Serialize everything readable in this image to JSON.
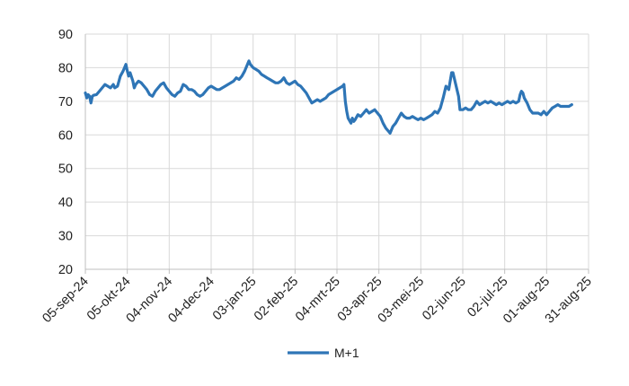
{
  "chart_data": {
    "type": "line",
    "title": "",
    "xlabel": "",
    "ylabel": "",
    "ylim": [
      20,
      90
    ],
    "y_ticks": [
      "20",
      "30",
      "40",
      "50",
      "60",
      "70",
      "80",
      "90"
    ],
    "x_tick_labels": [
      "05-sep-24",
      "05-okt-24",
      "04-nov-24",
      "04-dec-24",
      "03-jan-25",
      "02-feb-25",
      "04-mrt-25",
      "03-apr-25",
      "03-mei-25",
      "02-jun-25",
      "02-jul-25",
      "01-aug-25",
      "31-aug-25"
    ],
    "x_range_days": [
      0,
      360
    ],
    "grid": true,
    "legend_position": "bottom",
    "series": [
      {
        "name": "M+1",
        "color": "#2e75b6",
        "points": [
          [
            0,
            72.5
          ],
          [
            1,
            71
          ],
          [
            2,
            72
          ],
          [
            3,
            71.5
          ],
          [
            4,
            69.5
          ],
          [
            5,
            71.5
          ],
          [
            6,
            71.8
          ],
          [
            8,
            72
          ],
          [
            10,
            73
          ],
          [
            12,
            74
          ],
          [
            14,
            75
          ],
          [
            16,
            74.5
          ],
          [
            18,
            74
          ],
          [
            20,
            75
          ],
          [
            21,
            74
          ],
          [
            23,
            74.5
          ],
          [
            25,
            77.5
          ],
          [
            27,
            79
          ],
          [
            29,
            81
          ],
          [
            30,
            79
          ],
          [
            31,
            77.5
          ],
          [
            32,
            78.5
          ],
          [
            34,
            76
          ],
          [
            35,
            74
          ],
          [
            36,
            75
          ],
          [
            38,
            76
          ],
          [
            40,
            75.5
          ],
          [
            42,
            74.5
          ],
          [
            44,
            73.5
          ],
          [
            46,
            72
          ],
          [
            48,
            71.5
          ],
          [
            50,
            73
          ],
          [
            52,
            74
          ],
          [
            54,
            75
          ],
          [
            56,
            75.5
          ],
          [
            58,
            74
          ],
          [
            60,
            73
          ],
          [
            62,
            72
          ],
          [
            64,
            71.5
          ],
          [
            66,
            72.5
          ],
          [
            68,
            73
          ],
          [
            70,
            75
          ],
          [
            72,
            74.5
          ],
          [
            74,
            73.5
          ],
          [
            76,
            73.5
          ],
          [
            78,
            73
          ],
          [
            80,
            72
          ],
          [
            82,
            71.5
          ],
          [
            84,
            72
          ],
          [
            86,
            73
          ],
          [
            88,
            74
          ],
          [
            90,
            74.5
          ],
          [
            92,
            74
          ],
          [
            94,
            73.5
          ],
          [
            96,
            73.5
          ],
          [
            98,
            74
          ],
          [
            100,
            74.5
          ],
          [
            102,
            75
          ],
          [
            104,
            75.5
          ],
          [
            106,
            76
          ],
          [
            108,
            77
          ],
          [
            110,
            76.5
          ],
          [
            112,
            77.5
          ],
          [
            114,
            79
          ],
          [
            116,
            81
          ],
          [
            117,
            82
          ],
          [
            118,
            81
          ],
          [
            120,
            80
          ],
          [
            122,
            79.5
          ],
          [
            124,
            79
          ],
          [
            126,
            78
          ],
          [
            128,
            77.5
          ],
          [
            130,
            77
          ],
          [
            132,
            76.5
          ],
          [
            134,
            76
          ],
          [
            136,
            75.5
          ],
          [
            138,
            75.5
          ],
          [
            140,
            76
          ],
          [
            142,
            77
          ],
          [
            144,
            75.5
          ],
          [
            146,
            75
          ],
          [
            148,
            75.5
          ],
          [
            150,
            76
          ],
          [
            152,
            75
          ],
          [
            154,
            74.5
          ],
          [
            156,
            73.5
          ],
          [
            158,
            72.5
          ],
          [
            160,
            71
          ],
          [
            162,
            69.5
          ],
          [
            164,
            70
          ],
          [
            166,
            70.5
          ],
          [
            168,
            70
          ],
          [
            170,
            70.5
          ],
          [
            172,
            71
          ],
          [
            174,
            72
          ],
          [
            176,
            72.5
          ],
          [
            178,
            73
          ],
          [
            180,
            73.5
          ],
          [
            182,
            74
          ],
          [
            184,
            74.5
          ],
          [
            185,
            75
          ],
          [
            186,
            70
          ],
          [
            187,
            67
          ],
          [
            188,
            65
          ],
          [
            190,
            63.5
          ],
          [
            191,
            65
          ],
          [
            192,
            64
          ],
          [
            193,
            64.5
          ],
          [
            195,
            66
          ],
          [
            197,
            65.5
          ],
          [
            199,
            66.5
          ],
          [
            201,
            67.5
          ],
          [
            203,
            66.5
          ],
          [
            205,
            67
          ],
          [
            207,
            67.5
          ],
          [
            209,
            66.5
          ],
          [
            211,
            65.5
          ],
          [
            213,
            63.5
          ],
          [
            215,
            62
          ],
          [
            217,
            61
          ],
          [
            218,
            60.5
          ],
          [
            220,
            62.5
          ],
          [
            222,
            63.5
          ],
          [
            224,
            65
          ],
          [
            226,
            66.5
          ],
          [
            228,
            65.5
          ],
          [
            230,
            65
          ],
          [
            232,
            65
          ],
          [
            234,
            65.5
          ],
          [
            236,
            65
          ],
          [
            238,
            64.5
          ],
          [
            240,
            65
          ],
          [
            242,
            64.5
          ],
          [
            244,
            65
          ],
          [
            246,
            65.5
          ],
          [
            248,
            66
          ],
          [
            250,
            67
          ],
          [
            252,
            66.5
          ],
          [
            254,
            68
          ],
          [
            256,
            71
          ],
          [
            258,
            74.5
          ],
          [
            260,
            73.5
          ],
          [
            261,
            76
          ],
          [
            262,
            78.5
          ],
          [
            263,
            78.5
          ],
          [
            265,
            75
          ],
          [
            267,
            71.5
          ],
          [
            268,
            67.5
          ],
          [
            270,
            67.5
          ],
          [
            272,
            68
          ],
          [
            274,
            67.5
          ],
          [
            276,
            67.5
          ],
          [
            278,
            68.5
          ],
          [
            280,
            70
          ],
          [
            282,
            69
          ],
          [
            284,
            69.5
          ],
          [
            286,
            70
          ],
          [
            288,
            69.5
          ],
          [
            290,
            70
          ],
          [
            292,
            69.5
          ],
          [
            294,
            69
          ],
          [
            296,
            69.5
          ],
          [
            298,
            69
          ],
          [
            300,
            69.5
          ],
          [
            302,
            70
          ],
          [
            304,
            69.5
          ],
          [
            306,
            70
          ],
          [
            308,
            69.5
          ],
          [
            310,
            70
          ],
          [
            311,
            72
          ],
          [
            312,
            73
          ],
          [
            313,
            72.5
          ],
          [
            314,
            71
          ],
          [
            316,
            69.5
          ],
          [
            318,
            67.5
          ],
          [
            320,
            66.5
          ],
          [
            322,
            66.5
          ],
          [
            324,
            66.5
          ],
          [
            326,
            66
          ],
          [
            328,
            67
          ],
          [
            330,
            66
          ],
          [
            332,
            67
          ],
          [
            334,
            68
          ],
          [
            336,
            68.5
          ],
          [
            338,
            69
          ],
          [
            340,
            68.5
          ],
          [
            342,
            68.5
          ],
          [
            344,
            68.5
          ],
          [
            346,
            68.5
          ],
          [
            348,
            69
          ]
        ]
      }
    ]
  }
}
